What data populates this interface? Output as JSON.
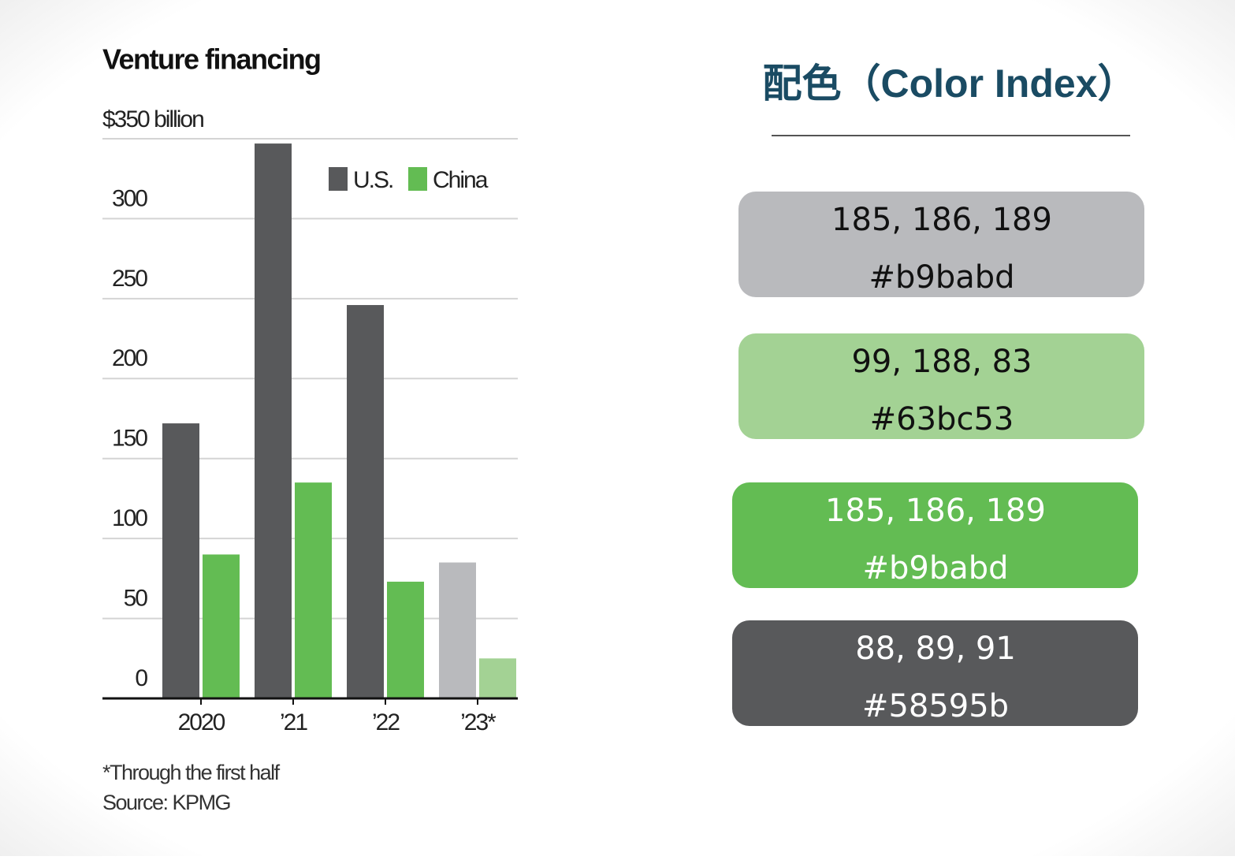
{
  "chart_data": {
    "type": "bar",
    "title": "Venture financing",
    "categories": [
      "2020",
      "’21",
      "’22",
      "’23*"
    ],
    "series": [
      {
        "name": "U.S.",
        "color": "#58595b",
        "colors": [
          "#58595b",
          "#58595b",
          "#58595b",
          "#b9babd"
        ],
        "values": [
          172,
          347,
          246,
          85
        ]
      },
      {
        "name": "China",
        "color": "#63bc53",
        "colors": [
          "#63bc53",
          "#63bc53",
          "#63bc53",
          "#a3d294"
        ],
        "values": [
          90,
          135,
          73,
          25
        ]
      }
    ],
    "ylim": [
      0,
      350
    ],
    "yticks": [
      0,
      50,
      100,
      150,
      200,
      250,
      300,
      {
        "value": 350,
        "label": "$350 billion"
      }
    ],
    "grid": true,
    "notes": [
      "*Through the first half",
      "Source: KPMG"
    ]
  },
  "color_index": {
    "title": "配色（Color Index）",
    "swatches": [
      {
        "rgb": "185, 186, 189",
        "hex": "#b9babd",
        "fill": "#b9babd",
        "text_color": "#111111"
      },
      {
        "rgb": "99, 188, 83",
        "hex": "#63bc53",
        "fill": "#a3d294",
        "text_color": "#111111"
      },
      {
        "rgb": "185, 186, 189",
        "hex": "#b9babd",
        "fill": "#63bc53",
        "text_color": "#ffffff"
      },
      {
        "rgb": "88, 89, 91",
        "hex": "#58595b",
        "fill": "#58595b",
        "text_color": "#ffffff"
      }
    ]
  }
}
